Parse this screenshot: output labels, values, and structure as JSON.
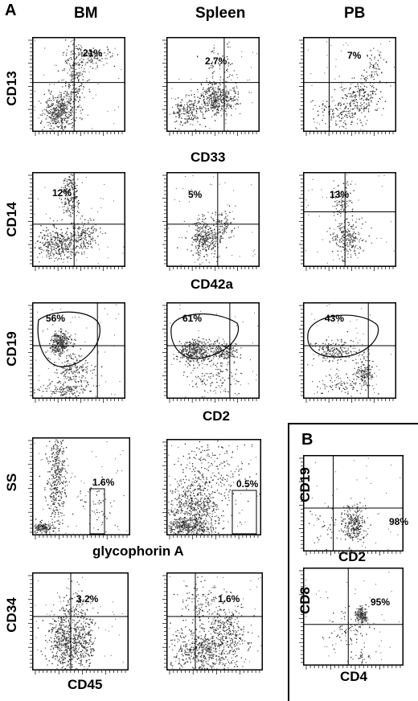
{
  "panels": {
    "a": "A",
    "b": "B"
  },
  "columns": [
    "BM",
    "Spleen",
    "PB"
  ],
  "rows": [
    {
      "y_marker": "CD13",
      "x_marker": "CD33",
      "percents": [
        "21%",
        "2.7%",
        "7%"
      ]
    },
    {
      "y_marker": "CD14",
      "x_marker": "CD42a",
      "percents": [
        "12%",
        "5%",
        "13%"
      ]
    },
    {
      "y_marker": "CD19",
      "x_marker": "CD2",
      "percents": [
        "56%",
        "61%",
        "43%"
      ]
    },
    {
      "y_marker": "SS",
      "x_marker": "glycophorin A",
      "percents": [
        "1.6%",
        "0.5%"
      ]
    },
    {
      "y_marker": "CD34",
      "x_marker": "CD45",
      "percents": [
        "3.2%",
        "1.6%"
      ]
    }
  ],
  "panel_b": [
    {
      "y_marker": "CD19",
      "x_marker": "CD2",
      "percent": "98%"
    },
    {
      "y_marker": "CD8",
      "x_marker": "CD4",
      "percent": "95%"
    }
  ]
}
